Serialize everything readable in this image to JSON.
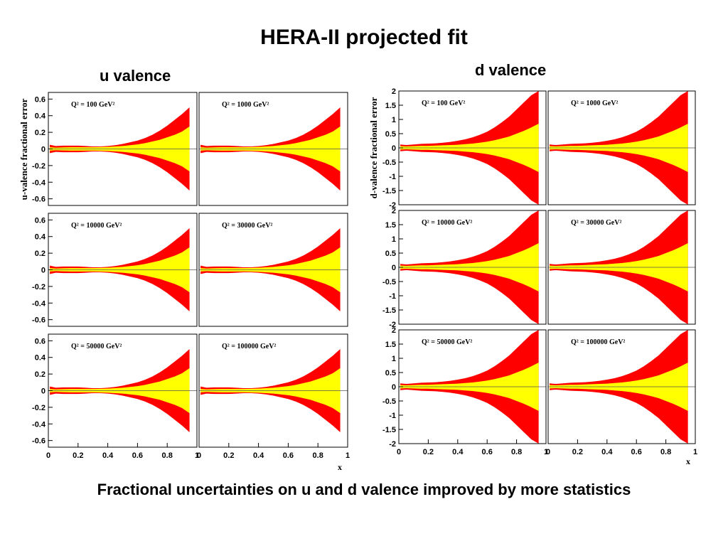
{
  "title": "HERA-II projected fit",
  "footer": "Fractional uncertainties on u and d valence improved by more statistics",
  "colors": {
    "outer_band": "#ff0000",
    "inner_band": "#ffff00",
    "axis": "#000000"
  },
  "chart_data": [
    {
      "type": "area",
      "group_title": "u valence",
      "ylabel": "u-valence fractional error",
      "xlabel": "x",
      "xlim": [
        0,
        1
      ],
      "ylim": [
        -0.68,
        0.68
      ],
      "yticks": [
        "0.6",
        "0.4",
        "0.2",
        "0",
        "-0.2",
        "-0.4",
        "-0.6"
      ],
      "ytick_values": [
        0.6,
        0.4,
        0.2,
        0,
        -0.2,
        -0.4,
        -0.6
      ],
      "xticks": [
        "0",
        "0.2",
        "0.4",
        "0.6",
        "0.8",
        "1"
      ],
      "xtick_values": [
        0,
        0.2,
        0.4,
        0.6,
        0.8,
        1
      ],
      "x": [
        0.01,
        0.05,
        0.1,
        0.15,
        0.2,
        0.25,
        0.3,
        0.35,
        0.4,
        0.45,
        0.5,
        0.55,
        0.6,
        0.65,
        0.7,
        0.75,
        0.8,
        0.85,
        0.9,
        0.95
      ],
      "series": [
        {
          "values_inner": [
            0.02,
            0.015,
            0.018,
            0.02,
            0.02,
            0.02,
            0.02,
            0.022,
            0.025,
            0.03,
            0.035,
            0.045,
            0.055,
            0.07,
            0.09,
            0.11,
            0.14,
            0.17,
            0.21,
            0.27
          ],
          "values_outer": [
            0.05,
            0.035,
            0.04,
            0.04,
            0.04,
            0.035,
            0.03,
            0.03,
            0.035,
            0.045,
            0.06,
            0.08,
            0.1,
            0.13,
            0.17,
            0.22,
            0.28,
            0.35,
            0.42,
            0.5
          ]
        }
      ],
      "panels": [
        "Q² = 100 GeV²",
        "Q² = 1000 GeV²",
        "Q² = 10000 GeV²",
        "Q² = 30000 GeV²",
        "Q² = 50000 GeV²",
        "Q² = 100000 GeV²"
      ]
    },
    {
      "type": "area",
      "group_title": "d valence",
      "ylabel": "d-valence fractional error",
      "xlabel": "x",
      "xlim": [
        0,
        1
      ],
      "ylim": [
        -2,
        2
      ],
      "yticks": [
        "2",
        "1.5",
        "1",
        "0.5",
        "0",
        "-0.5",
        "-1",
        "-1.5",
        "-2"
      ],
      "ytick_values": [
        2,
        1.5,
        1,
        0.5,
        0,
        -0.5,
        -1,
        -1.5,
        -2
      ],
      "xticks": [
        "0",
        "0.2",
        "0.4",
        "0.6",
        "0.8",
        "1"
      ],
      "xtick_values": [
        0,
        0.2,
        0.4,
        0.6,
        0.8,
        1
      ],
      "x": [
        0.01,
        0.05,
        0.1,
        0.15,
        0.2,
        0.25,
        0.3,
        0.35,
        0.4,
        0.45,
        0.5,
        0.55,
        0.6,
        0.65,
        0.7,
        0.75,
        0.8,
        0.85,
        0.9,
        0.95
      ],
      "series": [
        {
          "values_inner": [
            0.06,
            0.05,
            0.06,
            0.07,
            0.07,
            0.08,
            0.09,
            0.1,
            0.11,
            0.13,
            0.15,
            0.18,
            0.22,
            0.27,
            0.33,
            0.4,
            0.5,
            0.6,
            0.72,
            0.85
          ],
          "values_outer": [
            0.12,
            0.1,
            0.12,
            0.14,
            0.15,
            0.16,
            0.18,
            0.21,
            0.25,
            0.3,
            0.37,
            0.46,
            0.57,
            0.72,
            0.9,
            1.1,
            1.35,
            1.6,
            1.85,
            2.0
          ]
        }
      ],
      "panels": [
        "Q² = 100 GeV²",
        "Q² = 1000 GeV²",
        "Q² = 10000 GeV²",
        "Q² = 30000 GeV²",
        "Q² = 50000 GeV²",
        "Q² = 100000 GeV²"
      ]
    }
  ]
}
